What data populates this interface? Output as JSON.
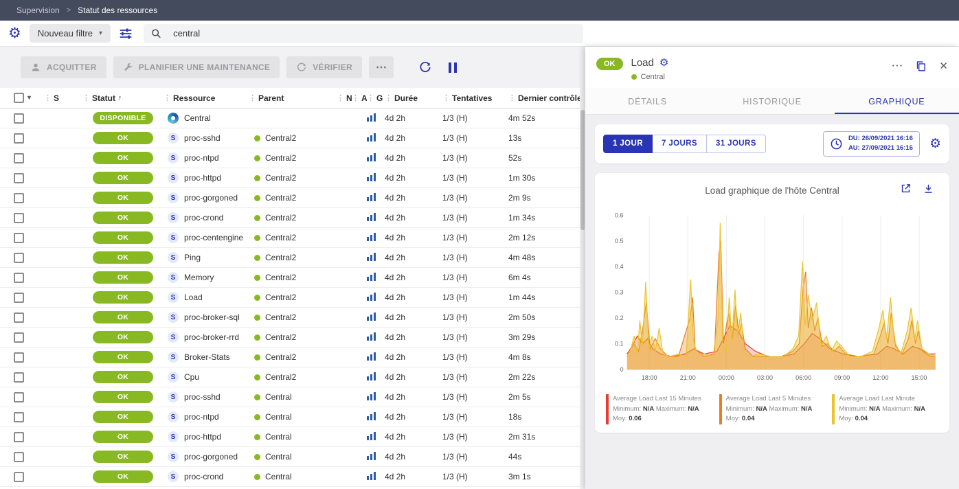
{
  "colors": {
    "accent": "#2A35B5",
    "status_ok": "#88B922",
    "topbar_bg": "#434B5C"
  },
  "icons": {
    "gear": "⚙",
    "caret": "▾",
    "kebab": "⋮",
    "more": "⋯",
    "close": "✕",
    "chevron": ">"
  },
  "breadcrumb": {
    "items": [
      "Supervision",
      "Statut des ressources"
    ]
  },
  "filter_bar": {
    "new_filter_label": "Nouveau filtre",
    "search_value": "central"
  },
  "toolbar": {
    "acknowledge": "ACQUITTER",
    "maintenance": "PLANIFIER UNE MAINTENANCE",
    "check": "VÉRIFIER"
  },
  "table": {
    "headers": [
      {
        "label": "S"
      },
      {
        "label": "Statut",
        "sort": "↑"
      },
      {
        "label": "Ressource"
      },
      {
        "label": "Parent"
      },
      {
        "label": "N"
      },
      {
        "label": "A"
      },
      {
        "label": "G"
      },
      {
        "label": "Durée"
      },
      {
        "label": "Tentatives"
      },
      {
        "label": "Dernier contrôle"
      }
    ],
    "rows": [
      {
        "status": "DISPONIBLE",
        "icon_kind": "host",
        "icon_letter": "",
        "name": "Central",
        "parent": "",
        "duration": "4d 2h",
        "tries": "1/3 (H)",
        "last_check": "4m 52s"
      },
      {
        "status": "OK",
        "icon_kind": "service",
        "icon_letter": "S",
        "name": "proc-sshd",
        "parent": "Central2",
        "duration": "4d 2h",
        "tries": "1/3 (H)",
        "last_check": "13s"
      },
      {
        "status": "OK",
        "icon_kind": "service",
        "icon_letter": "S",
        "name": "proc-ntpd",
        "parent": "Central2",
        "duration": "4d 2h",
        "tries": "1/3 (H)",
        "last_check": "52s"
      },
      {
        "status": "OK",
        "icon_kind": "service",
        "icon_letter": "S",
        "name": "proc-httpd",
        "parent": "Central2",
        "duration": "4d 2h",
        "tries": "1/3 (H)",
        "last_check": "1m 30s"
      },
      {
        "status": "OK",
        "icon_kind": "service",
        "icon_letter": "S",
        "name": "proc-gorgoned",
        "parent": "Central2",
        "duration": "4d 2h",
        "tries": "1/3 (H)",
        "last_check": "2m 9s"
      },
      {
        "status": "OK",
        "icon_kind": "service",
        "icon_letter": "S",
        "name": "proc-crond",
        "parent": "Central2",
        "duration": "4d 2h",
        "tries": "1/3 (H)",
        "last_check": "1m 34s"
      },
      {
        "status": "OK",
        "icon_kind": "service",
        "icon_letter": "S",
        "name": "proc-centengine",
        "parent": "Central2",
        "duration": "4d 2h",
        "tries": "1/3 (H)",
        "last_check": "2m 12s"
      },
      {
        "status": "OK",
        "icon_kind": "service",
        "icon_letter": "S",
        "name": "Ping",
        "parent": "Central2",
        "duration": "4d 2h",
        "tries": "1/3 (H)",
        "last_check": "4m 48s"
      },
      {
        "status": "OK",
        "icon_kind": "service",
        "icon_letter": "S",
        "name": "Memory",
        "parent": "Central2",
        "duration": "4d 2h",
        "tries": "1/3 (H)",
        "last_check": "6m 4s"
      },
      {
        "status": "OK",
        "icon_kind": "service",
        "icon_letter": "S",
        "name": "Load",
        "parent": "Central2",
        "duration": "4d 2h",
        "tries": "1/3 (H)",
        "last_check": "1m 44s"
      },
      {
        "status": "OK",
        "icon_kind": "service",
        "icon_letter": "S",
        "name": "proc-broker-sql",
        "parent": "Central2",
        "duration": "4d 2h",
        "tries": "1/3 (H)",
        "last_check": "2m 50s"
      },
      {
        "status": "OK",
        "icon_kind": "service",
        "icon_letter": "S",
        "name": "proc-broker-rrd",
        "parent": "Central2",
        "duration": "4d 2h",
        "tries": "1/3 (H)",
        "last_check": "3m 29s"
      },
      {
        "status": "OK",
        "icon_kind": "service",
        "icon_letter": "S",
        "name": "Broker-Stats",
        "parent": "Central2",
        "duration": "4d 2h",
        "tries": "1/3 (H)",
        "last_check": "4m 8s"
      },
      {
        "status": "OK",
        "icon_kind": "service",
        "icon_letter": "S",
        "name": "Cpu",
        "parent": "Central2",
        "duration": "4d 2h",
        "tries": "1/3 (H)",
        "last_check": "2m 22s"
      },
      {
        "status": "OK",
        "icon_kind": "service",
        "icon_letter": "S",
        "name": "proc-sshd",
        "parent": "Central",
        "duration": "4d 2h",
        "tries": "1/3 (H)",
        "last_check": "2m 5s"
      },
      {
        "status": "OK",
        "icon_kind": "service",
        "icon_letter": "S",
        "name": "proc-ntpd",
        "parent": "Central",
        "duration": "4d 2h",
        "tries": "1/3 (H)",
        "last_check": "18s"
      },
      {
        "status": "OK",
        "icon_kind": "service",
        "icon_letter": "S",
        "name": "proc-httpd",
        "parent": "Central",
        "duration": "4d 2h",
        "tries": "1/3 (H)",
        "last_check": "2m 31s"
      },
      {
        "status": "OK",
        "icon_kind": "service",
        "icon_letter": "S",
        "name": "proc-gorgoned",
        "parent": "Central",
        "duration": "4d 2h",
        "tries": "1/3 (H)",
        "last_check": "44s"
      },
      {
        "status": "OK",
        "icon_kind": "service",
        "icon_letter": "S",
        "name": "proc-crond",
        "parent": "Central",
        "duration": "4d 2h",
        "tries": "1/3 (H)",
        "last_check": "3m 1s"
      }
    ]
  },
  "panel": {
    "status": "OK",
    "title": "Load",
    "parent": "Central",
    "tabs": [
      {
        "label": "DÉTAILS"
      },
      {
        "label": "HISTORIQUE"
      },
      {
        "label": "GRAPHIQUE"
      }
    ],
    "time_buttons": [
      {
        "label": "1 JOUR"
      },
      {
        "label": "7 JOURS"
      },
      {
        "label": "31 JOURS"
      }
    ],
    "date_from": "DU: 26/09/2021 16:16",
    "date_to": "AU: 27/09/2021 16:16",
    "legend_labels": {
      "min": "Minimum:",
      "max": "Maximum:",
      "moy": "Moy:"
    }
  },
  "chart_data": {
    "type": "area",
    "title": "Load graphique de l'hôte Central",
    "x_start_label": "26/09/2021 16:16",
    "x_end_label": "27/09/2021 16:16",
    "x_range_hours": [
      0,
      24
    ],
    "ylim": [
      0,
      0.6
    ],
    "y_ticks": [
      0,
      0.1,
      0.2,
      0.3,
      0.4,
      0.5,
      0.6
    ],
    "x_ticks": [
      {
        "t": 1.73,
        "label": "18:00"
      },
      {
        "t": 4.73,
        "label": "21:00"
      },
      {
        "t": 7.73,
        "label": "00:00"
      },
      {
        "t": 10.73,
        "label": "03:00"
      },
      {
        "t": 13.73,
        "label": "06:00"
      },
      {
        "t": 16.73,
        "label": "09:00"
      },
      {
        "t": 19.73,
        "label": "12:00"
      },
      {
        "t": 22.73,
        "label": "15:00"
      }
    ],
    "grid": "vertical",
    "legend_position": "bottom",
    "series": [
      {
        "name": "Average Load Last 15 Minutes",
        "color": "#e73c34",
        "fill_opacity": 0.25,
        "min": "N/A",
        "max": "N/A",
        "moy": "0.06",
        "points": [
          [
            0,
            0.06
          ],
          [
            0.4,
            0.09
          ],
          [
            0.8,
            0.13
          ],
          [
            1.2,
            0.1
          ],
          [
            1.6,
            0.12
          ],
          [
            2,
            0.08
          ],
          [
            2.6,
            0.06
          ],
          [
            3.5,
            0.05
          ],
          [
            4.5,
            0.06
          ],
          [
            5.2,
            0.08
          ],
          [
            6,
            0.06
          ],
          [
            7,
            0.07
          ],
          [
            7.5,
            0.12
          ],
          [
            8,
            0.17
          ],
          [
            8.6,
            0.15
          ],
          [
            9.2,
            0.1
          ],
          [
            10,
            0.07
          ],
          [
            11,
            0.05
          ],
          [
            12,
            0.05
          ],
          [
            13,
            0.06
          ],
          [
            13.8,
            0.1
          ],
          [
            14.4,
            0.14
          ],
          [
            15,
            0.12
          ],
          [
            15.8,
            0.08
          ],
          [
            16.8,
            0.06
          ],
          [
            18,
            0.05
          ],
          [
            19.5,
            0.06
          ],
          [
            20.2,
            0.09
          ],
          [
            20.8,
            0.08
          ],
          [
            21.5,
            0.06
          ],
          [
            22.2,
            0.09
          ],
          [
            22.8,
            0.08
          ],
          [
            23.5,
            0.06
          ],
          [
            24,
            0.06
          ]
        ]
      },
      {
        "name": "Average Load Last 5 Minutes",
        "color": "#e87d23",
        "fill_opacity": 0.3,
        "min": "N/A",
        "max": "N/A",
        "moy": "0.04",
        "points": [
          [
            0,
            0.05
          ],
          [
            0.5,
            0.1
          ],
          [
            0.9,
            0.07
          ],
          [
            1.2,
            0.15
          ],
          [
            1.5,
            0.26
          ],
          [
            1.8,
            0.08
          ],
          [
            2.2,
            0.12
          ],
          [
            2.6,
            0.08
          ],
          [
            3.2,
            0.05
          ],
          [
            4,
            0.05
          ],
          [
            4.9,
            0.2
          ],
          [
            5.1,
            0.28
          ],
          [
            5.3,
            0.08
          ],
          [
            6,
            0.05
          ],
          [
            6.8,
            0.06
          ],
          [
            7.15,
            0.45
          ],
          [
            7.3,
            0.5
          ],
          [
            7.5,
            0.1
          ],
          [
            7.9,
            0.22
          ],
          [
            8.2,
            0.12
          ],
          [
            8.45,
            0.25
          ],
          [
            8.7,
            0.14
          ],
          [
            8.9,
            0.18
          ],
          [
            9.2,
            0.08
          ],
          [
            9.8,
            0.05
          ],
          [
            10.8,
            0.05
          ],
          [
            12,
            0.05
          ],
          [
            12.9,
            0.07
          ],
          [
            13.4,
            0.1
          ],
          [
            13.7,
            0.32
          ],
          [
            13.9,
            0.38
          ],
          [
            14.1,
            0.16
          ],
          [
            14.35,
            0.24
          ],
          [
            14.6,
            0.15
          ],
          [
            14.85,
            0.2
          ],
          [
            15.2,
            0.09
          ],
          [
            15.6,
            0.1
          ],
          [
            16.1,
            0.07
          ],
          [
            16.5,
            0.09
          ],
          [
            17,
            0.06
          ],
          [
            18,
            0.05
          ],
          [
            19.2,
            0.06
          ],
          [
            19.7,
            0.13
          ],
          [
            20,
            0.18
          ],
          [
            20.3,
            0.1
          ],
          [
            20.55,
            0.22
          ],
          [
            20.9,
            0.09
          ],
          [
            21.4,
            0.06
          ],
          [
            21.9,
            0.12
          ],
          [
            22.15,
            0.19
          ],
          [
            22.45,
            0.1
          ],
          [
            22.65,
            0.15
          ],
          [
            23,
            0.07
          ],
          [
            23.6,
            0.05
          ],
          [
            24,
            0.05
          ]
        ]
      },
      {
        "name": "Average Load Last Minute",
        "color": "#ecc32e",
        "fill_opacity": 0.4,
        "min": "N/A",
        "max": "N/A",
        "moy": "0.04",
        "points": [
          [
            0,
            0.05
          ],
          [
            0.3,
            0.08
          ],
          [
            0.55,
            0.13
          ],
          [
            0.8,
            0.06
          ],
          [
            1,
            0.19
          ],
          [
            1.2,
            0.09
          ],
          [
            1.45,
            0.34
          ],
          [
            1.7,
            0.08
          ],
          [
            1.95,
            0.13
          ],
          [
            2.2,
            0.07
          ],
          [
            2.5,
            0.16
          ],
          [
            2.8,
            0.06
          ],
          [
            3.3,
            0.05
          ],
          [
            4,
            0.06
          ],
          [
            4.6,
            0.05
          ],
          [
            4.95,
            0.35
          ],
          [
            5.15,
            0.12
          ],
          [
            5.45,
            0.06
          ],
          [
            6.1,
            0.06
          ],
          [
            6.7,
            0.05
          ],
          [
            7.1,
            0.2
          ],
          [
            7.25,
            0.57
          ],
          [
            7.45,
            0.1
          ],
          [
            7.7,
            0.07
          ],
          [
            7.95,
            0.28
          ],
          [
            8.15,
            0.11
          ],
          [
            8.4,
            0.31
          ],
          [
            8.6,
            0.13
          ],
          [
            8.85,
            0.22
          ],
          [
            9.1,
            0.08
          ],
          [
            9.5,
            0.05
          ],
          [
            10.3,
            0.06
          ],
          [
            11.2,
            0.05
          ],
          [
            12.2,
            0.05
          ],
          [
            12.9,
            0.08
          ],
          [
            13.35,
            0.13
          ],
          [
            13.65,
            0.42
          ],
          [
            13.85,
            0.17
          ],
          [
            14.1,
            0.29
          ],
          [
            14.4,
            0.19
          ],
          [
            14.75,
            0.26
          ],
          [
            15.1,
            0.09
          ],
          [
            15.5,
            0.13
          ],
          [
            15.9,
            0.07
          ],
          [
            16.3,
            0.11
          ],
          [
            16.7,
            0.09
          ],
          [
            17.3,
            0.05
          ],
          [
            18.2,
            0.05
          ],
          [
            19.1,
            0.07
          ],
          [
            19.6,
            0.16
          ],
          [
            19.9,
            0.23
          ],
          [
            20.2,
            0.12
          ],
          [
            20.5,
            0.28
          ],
          [
            20.8,
            0.11
          ],
          [
            21.3,
            0.06
          ],
          [
            21.8,
            0.15
          ],
          [
            22.1,
            0.24
          ],
          [
            22.4,
            0.12
          ],
          [
            22.6,
            0.19
          ],
          [
            22.95,
            0.08
          ],
          [
            23.5,
            0.06
          ],
          [
            24,
            0.05
          ]
        ]
      }
    ]
  }
}
